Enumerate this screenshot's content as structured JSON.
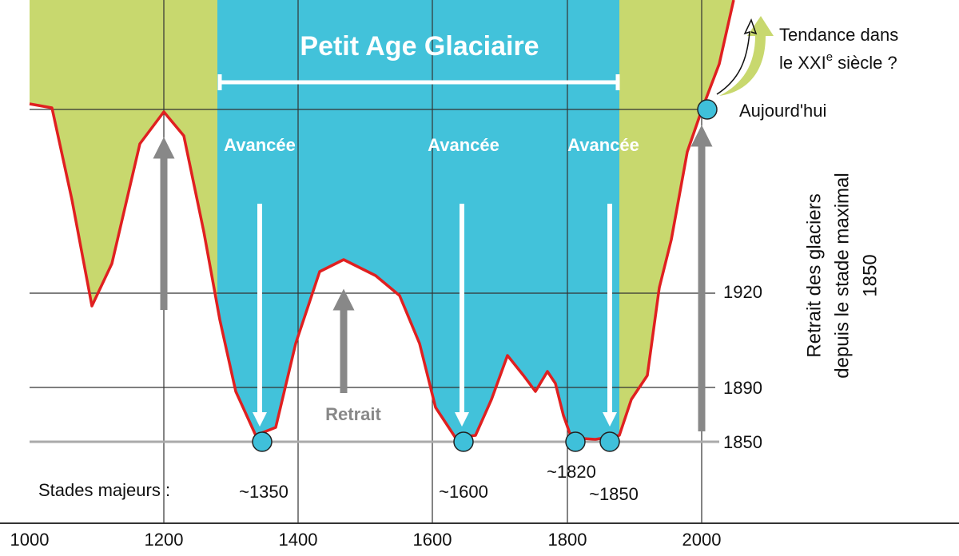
{
  "title": "Petit Age Glaciaire",
  "advances": [
    "Avancée",
    "Avancée",
    "Avancée"
  ],
  "retreat": "Retrait",
  "today": "Aujourd'hui",
  "trend": {
    "line1": "Tendance dans",
    "line2_start": "le XXI",
    "superscript": "e",
    "line2_end": " siècle ?"
  },
  "y_axis_label": [
    "Retrait des glaciers",
    "depuis le stade maximal",
    "1850"
  ],
  "y_labels": [
    "1920",
    "1890",
    "1850"
  ],
  "stages": {
    "label": "Stades majeurs :",
    "items": [
      "~1350",
      "~1600",
      "~1820",
      "~1850"
    ]
  },
  "x_labels": [
    "1000",
    "1200",
    "1400",
    "1600",
    "1800",
    "2000"
  ]
}
